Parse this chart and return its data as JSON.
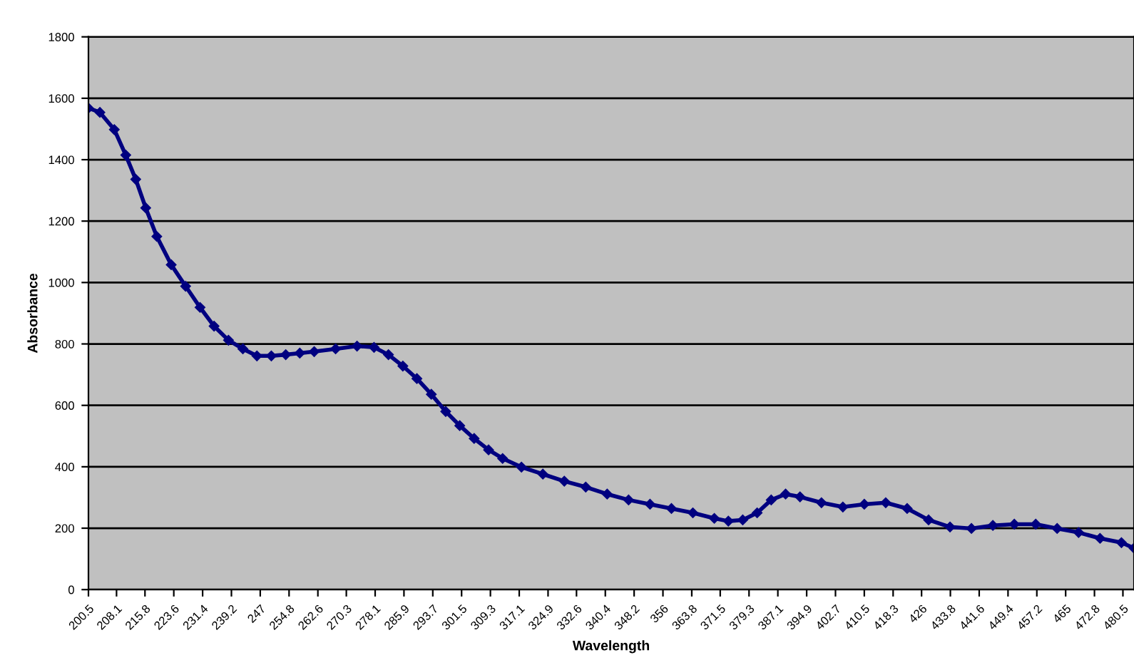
{
  "chart_data": {
    "type": "line",
    "xlabel": "Wavelength",
    "ylabel": "Absorbance",
    "x": [
      200.5,
      203.6,
      207.5,
      210.6,
      213.3,
      216,
      219,
      222.9,
      226.8,
      230.7,
      234.5,
      238.4,
      242.3,
      246.1,
      250,
      253.9,
      257.7,
      261.6,
      267.4,
      273.2,
      277.8,
      281.7,
      285.6,
      289.4,
      293.3,
      297.2,
      301,
      304.9,
      308.8,
      312.6,
      317.7,
      323.5,
      329.3,
      335.1,
      340.9,
      346.7,
      352.5,
      358.3,
      364.1,
      369.9,
      373.7,
      377.6,
      381.5,
      385.3,
      389.2,
      393.1,
      398.9,
      404.7,
      410.5,
      416.3,
      422.1,
      427.9,
      433.7,
      439.5,
      445.3,
      451.1,
      456.9,
      462.7,
      468.5,
      474.3,
      480.1,
      483.5
    ],
    "series": [
      {
        "color": "#000080",
        "values": [
          1568,
          1554,
          1498,
          1415,
          1336,
          1243,
          1150,
          1058,
          988,
          919,
          858,
          812,
          784,
          761,
          761,
          765,
          770,
          775,
          784,
          793,
          789,
          765,
          728,
          687,
          636,
          580,
          534,
          492,
          455,
          427,
          399,
          376,
          353,
          334,
          311,
          292,
          278,
          264,
          250,
          232,
          223,
          227,
          250,
          292,
          311,
          302,
          283,
          269,
          278,
          283,
          264,
          227,
          204,
          199,
          209,
          213,
          213,
          199,
          186,
          167,
          153,
          135
        ]
      }
    ],
    "xlim": [
      200.5,
      483.5
    ],
    "xticks": [
      200.5,
      208.1,
      215.8,
      223.6,
      231.4,
      239.2,
      247,
      254.8,
      262.6,
      270.3,
      278.1,
      285.9,
      293.7,
      301.5,
      309.3,
      317.1,
      324.9,
      332.6,
      340.4,
      348.2,
      356,
      363.8,
      371.5,
      379.3,
      387.1,
      394.9,
      402.7,
      410.5,
      418.3,
      426,
      433.8,
      441.6,
      449.4,
      457.2,
      465,
      472.8,
      480.5
    ],
    "ylim": [
      0,
      1800
    ],
    "yticks": [
      0,
      200,
      400,
      600,
      800,
      1000,
      1200,
      1400,
      1600,
      1800
    ],
    "grid": "y",
    "marker": "diamond",
    "line_style": "solid",
    "legend": false
  }
}
